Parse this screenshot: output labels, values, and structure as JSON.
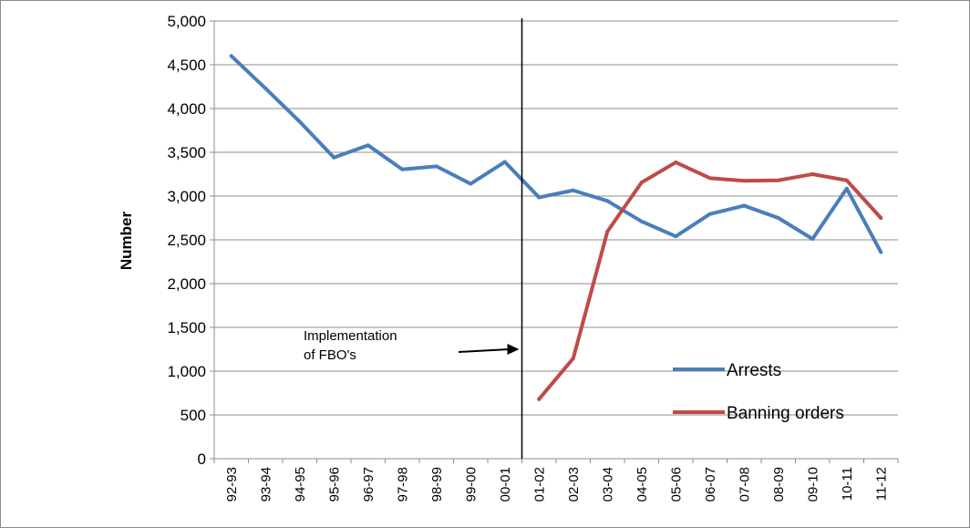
{
  "chart_data": {
    "type": "line",
    "title": "",
    "xlabel": "",
    "ylabel": "Number",
    "ylim": [
      0,
      5000
    ],
    "yticks": [
      "0",
      "500",
      "1,000",
      "1,500",
      "2,000",
      "2,500",
      "3,000",
      "3,500",
      "4,000",
      "4,500",
      "5,000"
    ],
    "ytick_values": [
      0,
      500,
      1000,
      1500,
      2000,
      2500,
      3000,
      3500,
      4000,
      4500,
      5000
    ],
    "categories": [
      "92-93",
      "93-94",
      "94-95",
      "95-96",
      "96-97",
      "97-98",
      "98-99",
      "99-00",
      "00-01",
      "01-02",
      "02-03",
      "03-04",
      "04-05",
      "05-06",
      "06-07",
      "07-08",
      "08-09",
      "09-10",
      "10-11",
      "11-12"
    ],
    "grid": true,
    "legend_position": "right",
    "series": [
      {
        "name": "Arrests",
        "color": "#4a7ebb",
        "values": [
          4600,
          4230,
          3850,
          3440,
          3580,
          3305,
          3340,
          3140,
          3390,
          2985,
          3065,
          2945,
          2710,
          2540,
          2795,
          2890,
          2750,
          2510,
          3085,
          2360
        ]
      },
      {
        "name": "Banning orders",
        "color": "#be4b48",
        "values": [
          null,
          null,
          null,
          null,
          null,
          null,
          null,
          null,
          null,
          680,
          1145,
          2595,
          3155,
          3385,
          3205,
          3175,
          3180,
          3250,
          3180,
          2750
        ]
      }
    ],
    "annotation": {
      "line1": "Implementation",
      "line2": "of FBO's",
      "marker_category_boundary": [
        "00-01",
        "01-02"
      ]
    }
  }
}
